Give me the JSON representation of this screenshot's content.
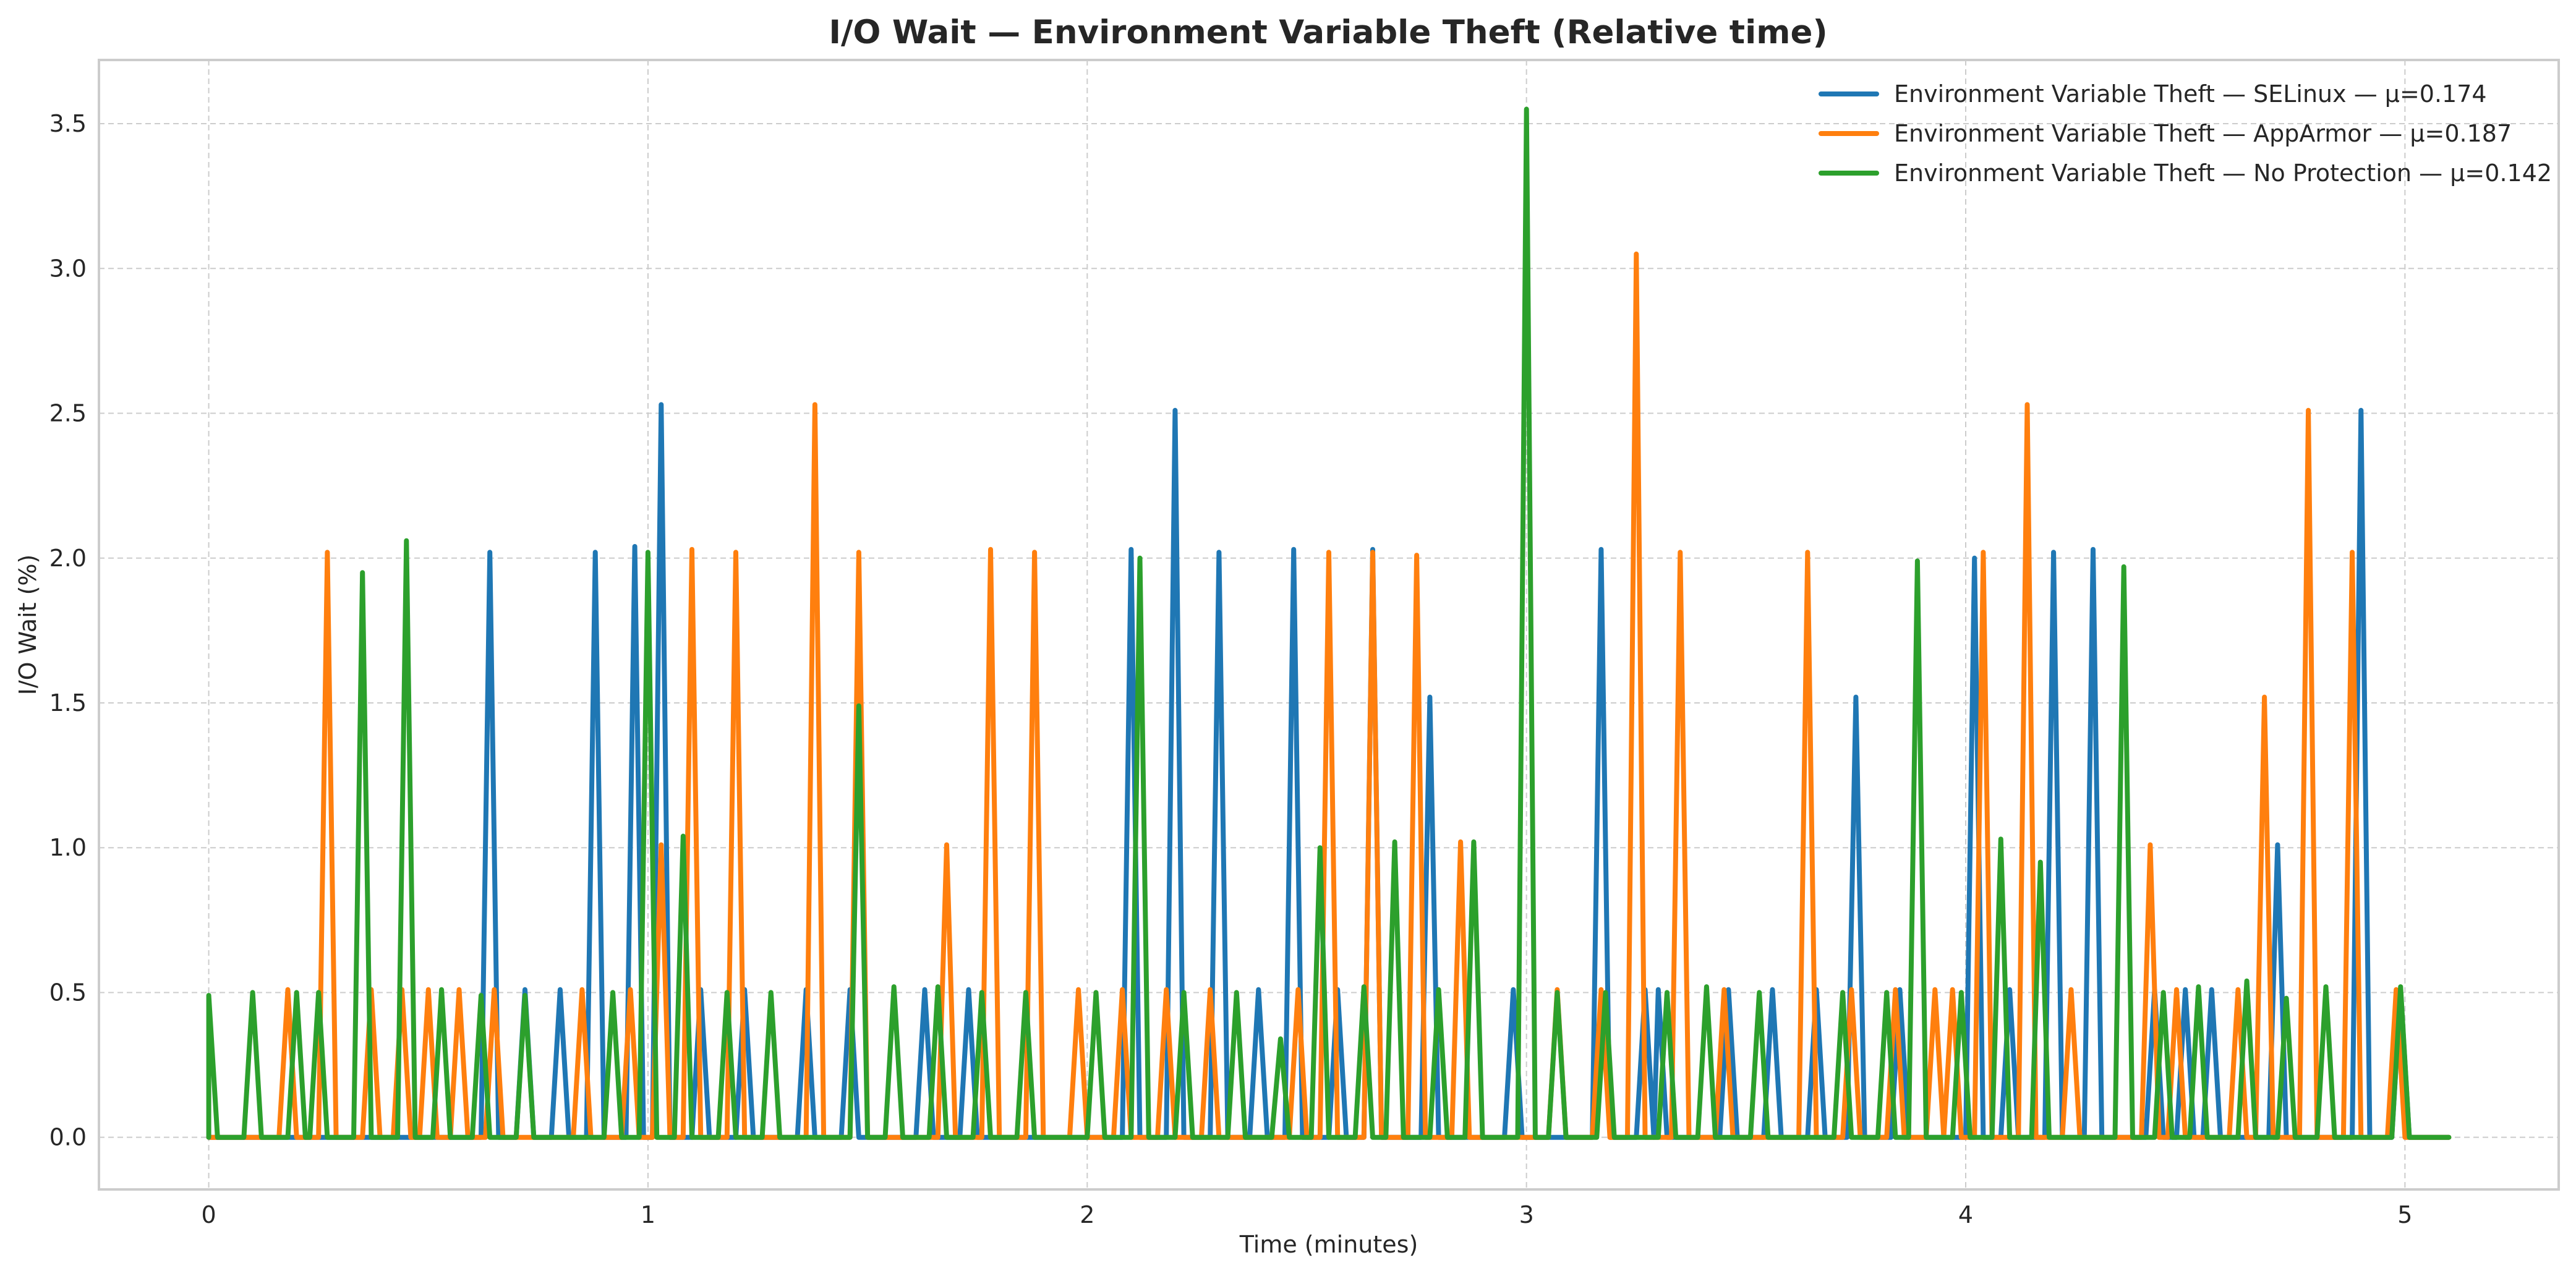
{
  "chart_data": {
    "type": "line",
    "title": "I/O Wait — Environment Variable Theft (Relative time)",
    "xlabel": "Time (minutes)",
    "ylabel": "I/O Wait (%)",
    "xlim": [
      -0.25,
      5.35
    ],
    "ylim": [
      -0.18,
      3.72
    ],
    "xticks": [
      0,
      1,
      2,
      3,
      4,
      5
    ],
    "yticks": [
      0.0,
      0.5,
      1.0,
      1.5,
      2.0,
      2.5,
      3.0,
      3.5
    ],
    "xtick_labels": [
      "0",
      "1",
      "2",
      "3",
      "4",
      "5"
    ],
    "ytick_labels": [
      "0.0",
      "0.5",
      "1.0",
      "1.5",
      "2.0",
      "2.5",
      "3.0",
      "3.5"
    ],
    "grid": true,
    "legend_position": "top-right",
    "x_range": [
      0,
      5.1
    ],
    "series": [
      {
        "name": "Environment Variable Theft — SELinux — μ=0.174",
        "color": "#1f77b4",
        "peaks": [
          [
            0.64,
            2.02
          ],
          [
            0.72,
            0.51
          ],
          [
            0.8,
            0.51
          ],
          [
            0.88,
            2.02
          ],
          [
            0.97,
            2.04
          ],
          [
            1.03,
            2.53
          ],
          [
            1.12,
            0.51
          ],
          [
            1.22,
            0.51
          ],
          [
            1.36,
            0.51
          ],
          [
            1.46,
            0.51
          ],
          [
            1.63,
            0.51
          ],
          [
            1.73,
            0.51
          ],
          [
            2.1,
            2.03
          ],
          [
            2.2,
            2.51
          ],
          [
            2.3,
            2.02
          ],
          [
            2.39,
            0.51
          ],
          [
            2.47,
            2.03
          ],
          [
            2.57,
            0.51
          ],
          [
            2.65,
            2.03
          ],
          [
            2.78,
            1.52
          ],
          [
            2.97,
            0.51
          ],
          [
            3.17,
            2.03
          ],
          [
            3.27,
            0.51
          ],
          [
            3.3,
            0.51
          ],
          [
            3.46,
            0.51
          ],
          [
            3.56,
            0.51
          ],
          [
            3.66,
            0.51
          ],
          [
            3.75,
            1.52
          ],
          [
            3.85,
            0.51
          ],
          [
            4.02,
            2.0
          ],
          [
            4.1,
            0.51
          ],
          [
            4.2,
            2.02
          ],
          [
            4.29,
            2.03
          ],
          [
            4.43,
            0.51
          ],
          [
            4.5,
            0.51
          ],
          [
            4.56,
            0.51
          ],
          [
            4.71,
            1.01
          ],
          [
            4.9,
            2.51
          ],
          [
            4.99,
            0.51
          ]
        ]
      },
      {
        "name": "Environment Variable Theft — AppArmor — μ=0.187",
        "color": "#ff7f0e",
        "peaks": [
          [
            0.18,
            0.51
          ],
          [
            0.27,
            2.02
          ],
          [
            0.37,
            0.51
          ],
          [
            0.44,
            0.51
          ],
          [
            0.5,
            0.51
          ],
          [
            0.57,
            0.51
          ],
          [
            0.65,
            0.51
          ],
          [
            0.85,
            0.51
          ],
          [
            0.96,
            0.51
          ],
          [
            1.03,
            1.01
          ],
          [
            1.1,
            2.03
          ],
          [
            1.2,
            2.02
          ],
          [
            1.38,
            2.53
          ],
          [
            1.48,
            2.02
          ],
          [
            1.68,
            1.01
          ],
          [
            1.78,
            2.03
          ],
          [
            1.88,
            2.02
          ],
          [
            1.98,
            0.51
          ],
          [
            2.08,
            0.51
          ],
          [
            2.18,
            0.51
          ],
          [
            2.28,
            0.51
          ],
          [
            2.48,
            0.51
          ],
          [
            2.55,
            2.02
          ],
          [
            2.65,
            2.02
          ],
          [
            2.75,
            2.01
          ],
          [
            2.85,
            1.02
          ],
          [
            3.07,
            0.51
          ],
          [
            3.17,
            0.51
          ],
          [
            3.25,
            3.05
          ],
          [
            3.35,
            2.02
          ],
          [
            3.45,
            0.51
          ],
          [
            3.64,
            2.02
          ],
          [
            3.74,
            0.51
          ],
          [
            3.84,
            0.51
          ],
          [
            3.93,
            0.51
          ],
          [
            3.97,
            0.51
          ],
          [
            4.04,
            2.02
          ],
          [
            4.14,
            2.53
          ],
          [
            4.24,
            0.51
          ],
          [
            4.42,
            1.01
          ],
          [
            4.48,
            0.51
          ],
          [
            4.62,
            0.51
          ],
          [
            4.68,
            1.52
          ],
          [
            4.78,
            2.51
          ],
          [
            4.88,
            2.02
          ],
          [
            4.98,
            0.51
          ]
        ]
      },
      {
        "name": "Environment Variable Theft — No Protection — μ=0.142",
        "color": "#2ca02c",
        "peaks": [
          [
            0.0,
            0.49
          ],
          [
            0.1,
            0.5
          ],
          [
            0.2,
            0.5
          ],
          [
            0.25,
            0.5
          ],
          [
            0.35,
            1.95
          ],
          [
            0.45,
            2.06
          ],
          [
            0.53,
            0.51
          ],
          [
            0.62,
            0.49
          ],
          [
            0.72,
            0.49
          ],
          [
            0.92,
            0.5
          ],
          [
            1.0,
            2.02
          ],
          [
            1.08,
            1.04
          ],
          [
            1.18,
            0.5
          ],
          [
            1.28,
            0.5
          ],
          [
            1.48,
            1.49
          ],
          [
            1.56,
            0.52
          ],
          [
            1.66,
            0.52
          ],
          [
            1.76,
            0.5
          ],
          [
            1.86,
            0.5
          ],
          [
            2.02,
            0.5
          ],
          [
            2.12,
            2.0
          ],
          [
            2.22,
            0.5
          ],
          [
            2.34,
            0.5
          ],
          [
            2.44,
            0.34
          ],
          [
            2.53,
            1.0
          ],
          [
            2.63,
            0.52
          ],
          [
            2.7,
            1.02
          ],
          [
            2.8,
            0.51
          ],
          [
            2.88,
            1.02
          ],
          [
            3.0,
            3.55
          ],
          [
            3.07,
            0.5
          ],
          [
            3.18,
            0.5
          ],
          [
            3.32,
            0.5
          ],
          [
            3.41,
            0.52
          ],
          [
            3.53,
            0.5
          ],
          [
            3.72,
            0.5
          ],
          [
            3.82,
            0.5
          ],
          [
            3.89,
            1.99
          ],
          [
            3.99,
            0.5
          ],
          [
            4.08,
            1.03
          ],
          [
            4.17,
            0.95
          ],
          [
            4.36,
            1.97
          ],
          [
            4.45,
            0.5
          ],
          [
            4.53,
            0.52
          ],
          [
            4.64,
            0.54
          ],
          [
            4.73,
            0.48
          ],
          [
            4.82,
            0.52
          ],
          [
            4.99,
            0.52
          ]
        ]
      }
    ]
  }
}
